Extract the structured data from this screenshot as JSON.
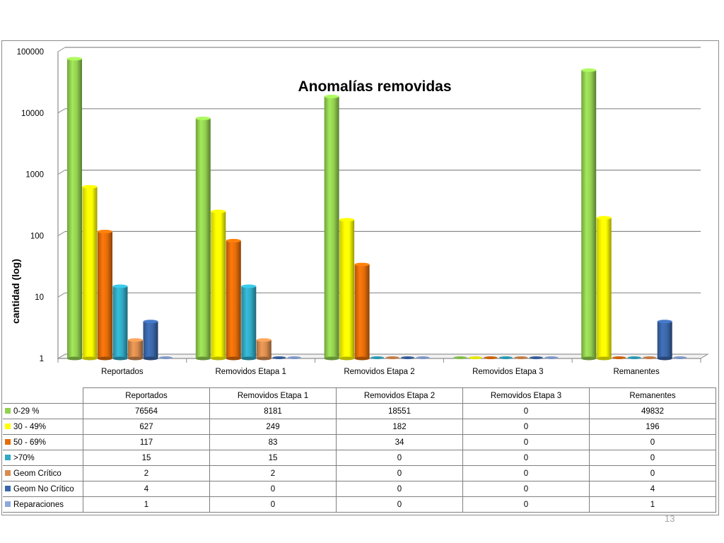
{
  "page_number": "13",
  "chart_data": {
    "type": "bar",
    "title": "Anomalías removidas",
    "xlabel": "",
    "ylabel": "cantidad (log)",
    "yscale": "log",
    "ylim": [
      1,
      100000
    ],
    "yticks": [
      "1",
      "10",
      "100",
      "1000",
      "10000",
      "100000"
    ],
    "grid": true,
    "legend": "data-table",
    "categories": [
      "Reportados",
      "Removidos Etapa 1",
      "Removidos Etapa 2",
      "Removidos Etapa 3",
      "Remanentes"
    ],
    "series": [
      {
        "name": "0-29 %",
        "color": "#92d050",
        "values": [
          76564,
          8181,
          18551,
          0,
          49832
        ]
      },
      {
        "name": "30 - 49%",
        "color": "#ffff00",
        "values": [
          627,
          249,
          182,
          0,
          196
        ]
      },
      {
        "name": "50 - 69%",
        "color": "#e46c0a",
        "values": [
          117,
          83,
          34,
          0,
          0
        ]
      },
      {
        "name": ">70%",
        "color": "#31a9c4",
        "values": [
          15,
          15,
          0,
          0,
          0
        ]
      },
      {
        "name": "Geom Crítico",
        "color": "#d88b4e",
        "values": [
          2,
          2,
          0,
          0,
          0
        ]
      },
      {
        "name": "Geom No Crítico",
        "color": "#3a66a8",
        "values": [
          4,
          0,
          0,
          0,
          4
        ]
      },
      {
        "name": "Reparaciones",
        "color": "#8ea8db",
        "values": [
          1,
          0,
          0,
          0,
          1
        ]
      }
    ]
  }
}
